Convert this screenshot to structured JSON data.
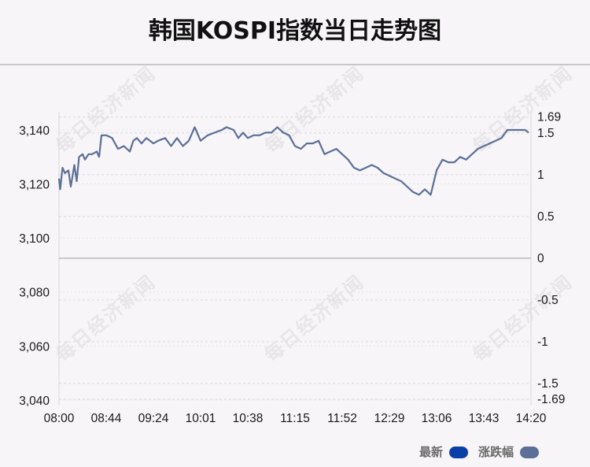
{
  "title": "韩国KOSPI指数当日走势图",
  "watermark_text": "每日经济新闻",
  "legend": [
    {
      "label": "最新",
      "color": "#0b3fa8"
    },
    {
      "label": "涨跌幅",
      "color": "#5b6f98"
    }
  ],
  "chart_data": {
    "type": "line",
    "title": "韩国KOSPI指数当日走势图",
    "x_ticks": [
      "08:00",
      "08:44",
      "09:24",
      "10:01",
      "10:38",
      "11:15",
      "11:52",
      "12:29",
      "13:06",
      "13:43",
      "14:20"
    ],
    "y_left": {
      "ticks": [
        "3,140",
        "3,120",
        "3,100",
        "3,080",
        "3,060",
        "3,040"
      ],
      "values": [
        3140,
        3120,
        3100,
        3080,
        3060,
        3040
      ],
      "range": [
        3038.2,
        3146.7
      ]
    },
    "y_right": {
      "ticks": [
        "1.69",
        "1.5",
        "1",
        "0.5",
        "0",
        "-0.5",
        "-1",
        "-1.5",
        "-1.69"
      ],
      "values": [
        1.69,
        1.5,
        1,
        0.5,
        0,
        -0.5,
        -1,
        -1.5,
        -1.69
      ],
      "range": [
        -1.69,
        1.69
      ]
    },
    "baseline": 3092.5,
    "grid": true,
    "legend_position": "bottom-right",
    "series": [
      {
        "name": "涨跌幅",
        "color": "#5b6f98",
        "x_minutes": [
          0,
          1,
          3,
          5,
          8,
          10,
          13,
          15,
          17,
          20,
          22,
          25,
          28,
          32,
          34,
          36,
          40,
          45,
          50,
          55,
          60,
          63,
          66,
          70,
          74,
          80,
          84,
          90,
          95,
          100,
          105,
          110,
          115,
          120,
          126,
          132,
          138,
          142,
          148,
          152,
          156,
          160,
          165,
          170,
          175,
          180,
          185,
          190,
          195,
          200,
          205,
          210,
          215,
          220,
          225,
          230,
          235,
          240,
          245,
          250,
          255,
          260,
          265,
          270,
          275,
          280,
          285,
          290,
          295,
          300,
          305,
          310,
          315,
          320,
          325,
          330,
          335,
          340,
          345,
          350,
          355,
          360,
          365,
          370,
          375,
          380,
          385,
          390,
          395,
          398
        ],
        "values": [
          3122,
          3118,
          3126,
          3124,
          3125,
          3119,
          3127,
          3121,
          3130,
          3131,
          3129,
          3131,
          3131,
          3132,
          3130,
          3138,
          3138,
          3137,
          3133,
          3134,
          3132,
          3136,
          3137,
          3135,
          3137,
          3135,
          3136,
          3137,
          3134,
          3137,
          3134,
          3136,
          3141,
          3136,
          3138,
          3139,
          3140,
          3141,
          3140,
          3137,
          3139,
          3137,
          3138,
          3138,
          3139,
          3139,
          3141,
          3139,
          3138,
          3134,
          3133,
          3135,
          3135,
          3136,
          3131,
          3132,
          3133,
          3131,
          3129,
          3126,
          3125,
          3126,
          3127,
          3126,
          3124,
          3123,
          3122,
          3121,
          3119,
          3117,
          3116,
          3118,
          3116,
          3125,
          3129,
          3128,
          3128,
          3130,
          3129,
          3131,
          3133,
          3134,
          3135,
          3136,
          3137,
          3140,
          3140,
          3140,
          3140,
          3139
        ]
      }
    ]
  }
}
